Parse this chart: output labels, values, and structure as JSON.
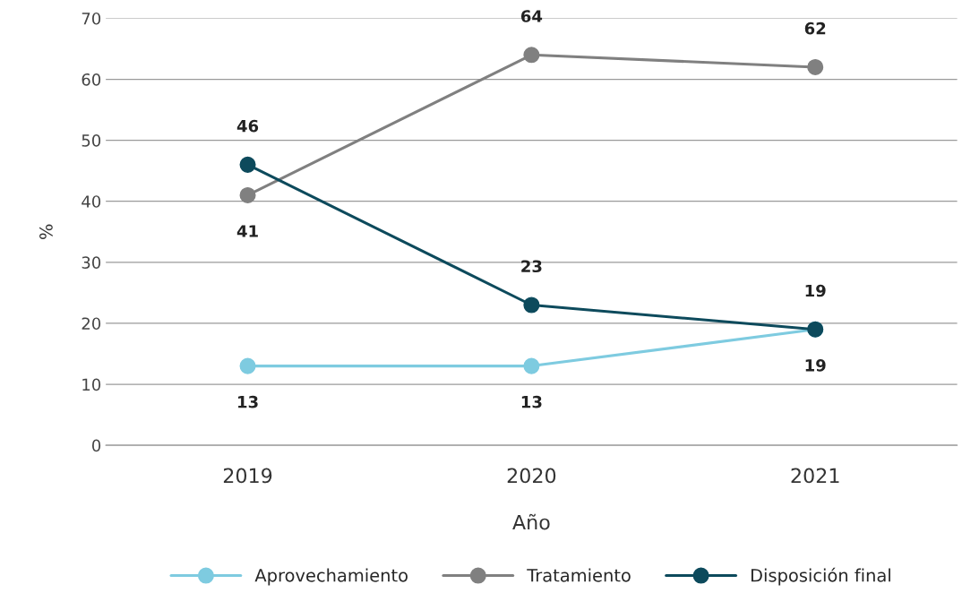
{
  "chart_data": {
    "type": "line",
    "xlabel": "Año",
    "ylabel": "%",
    "categories": [
      "2019",
      "2020",
      "2021"
    ],
    "series": [
      {
        "name": "Aprovechamiento",
        "color": "#7ecbe0",
        "values": [
          13,
          13,
          19
        ]
      },
      {
        "name": "Tratamiento",
        "color": "#808080",
        "values": [
          41,
          64,
          62
        ]
      },
      {
        "name": "Disposición final",
        "color": "#0d4a5c",
        "values": [
          46,
          23,
          19
        ]
      }
    ],
    "ylim": [
      0,
      70
    ],
    "yticks": [
      0,
      10,
      20,
      30,
      40,
      50,
      60,
      70
    ],
    "grid": "y",
    "legend": "bottom",
    "marker": "circle",
    "line_style": "solid",
    "data_labels": true
  }
}
